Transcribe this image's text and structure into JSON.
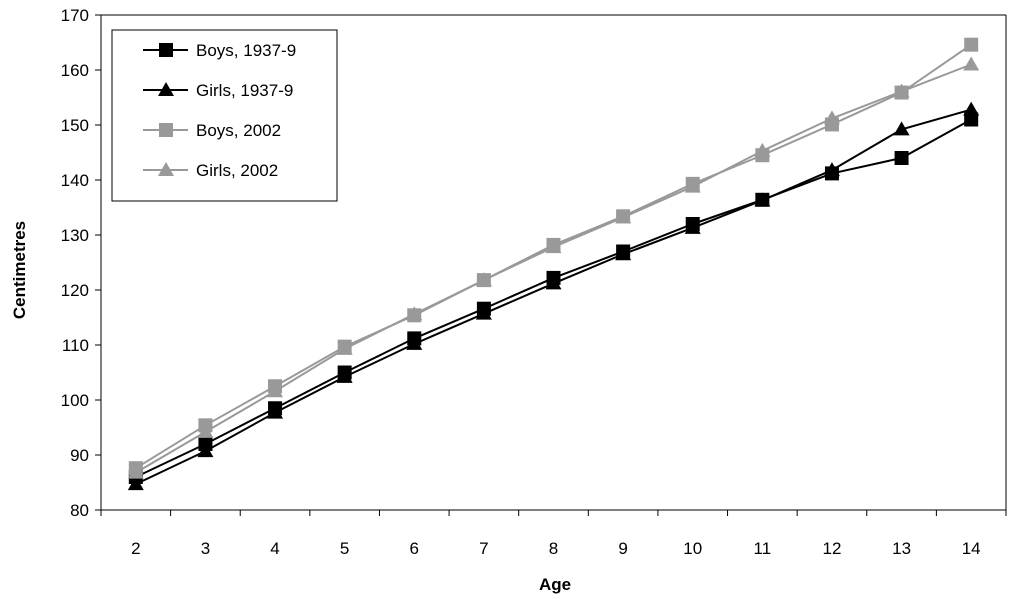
{
  "chart_data": {
    "type": "line",
    "title": "",
    "xlabel": "Age",
    "ylabel": "Centimetres",
    "x": [
      2,
      3,
      4,
      5,
      6,
      7,
      8,
      9,
      10,
      11,
      12,
      13,
      14
    ],
    "ylim": [
      80,
      170
    ],
    "yticks": [
      80,
      90,
      100,
      110,
      120,
      130,
      140,
      150,
      160,
      170
    ],
    "grid": false,
    "legend_position": "top-left",
    "series": [
      {
        "name": "Boys, 1937-9",
        "marker": "square",
        "color": "#000000",
        "values": [
          86.0,
          92.0,
          98.5,
          105.0,
          111.2,
          116.6,
          122.2,
          127.0,
          132.0,
          136.4,
          141.2,
          144.0,
          151.0
        ]
      },
      {
        "name": "Girls, 1937-9",
        "marker": "triangle",
        "color": "#000000",
        "values": [
          84.7,
          90.7,
          97.7,
          104.2,
          110.2,
          115.7,
          121.2,
          126.5,
          131.3,
          136.3,
          141.8,
          149.2,
          152.8
        ]
      },
      {
        "name": "Boys, 2002",
        "marker": "square",
        "color": "#999999",
        "values": [
          87.6,
          95.4,
          102.5,
          109.7,
          115.4,
          121.8,
          128.2,
          133.4,
          139.3,
          144.5,
          150.1,
          155.9,
          164.6
        ]
      },
      {
        "name": "Girls, 2002",
        "marker": "triangle",
        "color": "#999999",
        "values": [
          86.8,
          94.2,
          101.6,
          109.3,
          115.6,
          121.8,
          127.8,
          133.2,
          138.8,
          145.3,
          151.2,
          156.1,
          161.0
        ]
      }
    ]
  }
}
